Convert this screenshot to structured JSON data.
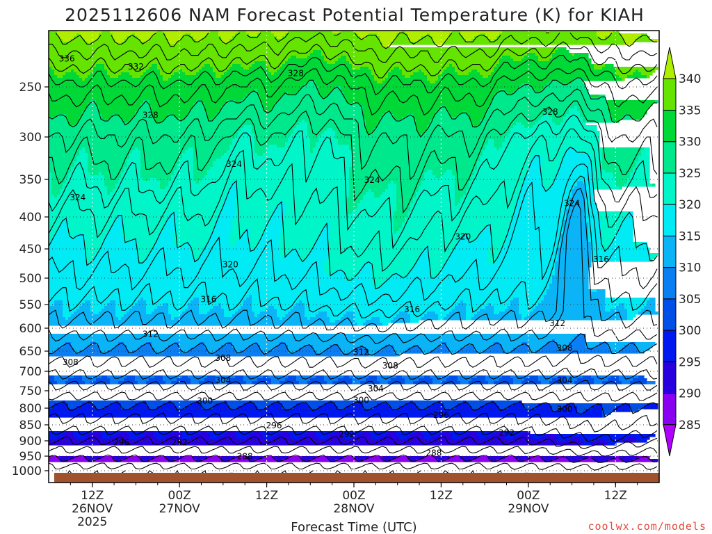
{
  "chart_data": {
    "type": "heatmap",
    "title": "2025112606 NAM Forecast Potential Temperature (K) for KIAH",
    "xlabel": "Forecast Time (UTC)",
    "ylabel": "",
    "x_ticks": [
      {
        "label": "12Z",
        "sub": "26NOV",
        "sub2": "2025",
        "hour": 6
      },
      {
        "label": "00Z",
        "sub": "27NOV",
        "sub2": "",
        "hour": 18
      },
      {
        "label": "12Z",
        "sub": "",
        "sub2": "",
        "hour": 30
      },
      {
        "label": "00Z",
        "sub": "28NOV",
        "sub2": "",
        "hour": 42
      },
      {
        "label": "12Z",
        "sub": "",
        "sub2": "",
        "hour": 54
      },
      {
        "label": "00Z",
        "sub": "29NOV",
        "sub2": "",
        "hour": 66
      },
      {
        "label": "12Z",
        "sub": "",
        "sub2": "",
        "hour": 78
      }
    ],
    "xlim_hours": [
      0,
      84
    ],
    "y_ticks": [
      250,
      300,
      350,
      400,
      450,
      500,
      550,
      600,
      650,
      700,
      750,
      800,
      850,
      900,
      950,
      1000
    ],
    "ylim_hpa": [
      200,
      1010
    ],
    "colorbar": {
      "levels": [
        285,
        290,
        295,
        300,
        305,
        310,
        315,
        320,
        325,
        330,
        335,
        340
      ],
      "colors": [
        "#b000ff",
        "#8a00f0",
        "#2800e0",
        "#0018f0",
        "#0050e8",
        "#0a7ff4",
        "#0bb4f6",
        "#00ebf4",
        "#00f5c8",
        "#00e88c",
        "#00d838",
        "#64e400",
        "#b0ee00"
      ]
    },
    "contour_labels": [
      {
        "value": "336",
        "hour": 2.5,
        "p": 225
      },
      {
        "value": "332",
        "hour": 12,
        "p": 232
      },
      {
        "value": "328",
        "hour": 34,
        "p": 238
      },
      {
        "value": "328",
        "hour": 14,
        "p": 278
      },
      {
        "value": "328",
        "hour": 69,
        "p": 275
      },
      {
        "value": "324",
        "hour": 25.5,
        "p": 332
      },
      {
        "value": "324",
        "hour": 44.5,
        "p": 351
      },
      {
        "value": "324",
        "hour": 4,
        "p": 374
      },
      {
        "value": "324",
        "hour": 72,
        "p": 382
      },
      {
        "value": "320",
        "hour": 57,
        "p": 431
      },
      {
        "value": "320",
        "hour": 25,
        "p": 477
      },
      {
        "value": "316",
        "hour": 76,
        "p": 468
      },
      {
        "value": "316",
        "hour": 22,
        "p": 540
      },
      {
        "value": "316",
        "hour": 50,
        "p": 560
      },
      {
        "value": "312",
        "hour": 14,
        "p": 613
      },
      {
        "value": "312",
        "hour": 70,
        "p": 590
      },
      {
        "value": "312",
        "hour": 43,
        "p": 653
      },
      {
        "value": "308",
        "hour": 3,
        "p": 678
      },
      {
        "value": "308",
        "hour": 24,
        "p": 667
      },
      {
        "value": "308",
        "hour": 47,
        "p": 686
      },
      {
        "value": "308",
        "hour": 71,
        "p": 643
      },
      {
        "value": "304",
        "hour": 24,
        "p": 723
      },
      {
        "value": "304",
        "hour": 45,
        "p": 745
      },
      {
        "value": "304",
        "hour": 71,
        "p": 723
      },
      {
        "value": "300",
        "hour": 21.5,
        "p": 779
      },
      {
        "value": "300",
        "hour": 43,
        "p": 777
      },
      {
        "value": "300",
        "hour": 71,
        "p": 803
      },
      {
        "value": "296",
        "hour": 31,
        "p": 852
      },
      {
        "value": "296",
        "hour": 54,
        "p": 821
      },
      {
        "value": "296",
        "hour": 10,
        "p": 906
      },
      {
        "value": "292",
        "hour": 18,
        "p": 906
      },
      {
        "value": "292",
        "hour": 41,
        "p": 879
      },
      {
        "value": "292",
        "hour": 63,
        "p": 875
      },
      {
        "value": "288",
        "hour": 27,
        "p": 951
      },
      {
        "value": "288",
        "hour": 53,
        "p": 940
      }
    ],
    "grid": true,
    "legend": "right"
  },
  "credit": "coolwx.com/models"
}
